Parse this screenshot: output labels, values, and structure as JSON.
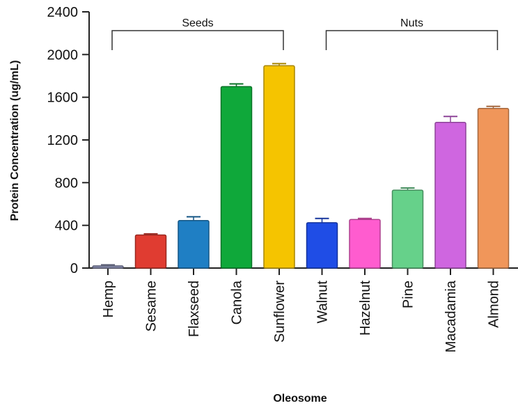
{
  "chart_data": {
    "type": "bar",
    "title": "",
    "xlabel": "Oleosome",
    "ylabel": "Protein Concentration (ug/mL)",
    "ylim": [
      0,
      2400
    ],
    "yticks": [
      0,
      400,
      800,
      1200,
      1600,
      2000,
      2400
    ],
    "grid": false,
    "categories": [
      "Hemp",
      "Sesame",
      "Flaxseed",
      "Canola",
      "Sunflower",
      "Walnut",
      "Hazelnut",
      "Pine",
      "Macadamia",
      "Almond"
    ],
    "values": [
      20,
      310,
      445,
      1700,
      1895,
      425,
      455,
      730,
      1365,
      1495
    ],
    "errors": [
      10,
      10,
      35,
      25,
      20,
      40,
      10,
      20,
      55,
      20
    ],
    "colors": [
      "#8a8fb0",
      "#e03c31",
      "#1f7fc4",
      "#0fa83a",
      "#f5c400",
      "#1f4de6",
      "#ff5ccf",
      "#66d18a",
      "#cf66e0",
      "#f0965a"
    ],
    "groups": [
      {
        "label": "Seeds",
        "from": "Hemp",
        "to": "Sunflower"
      },
      {
        "label": "Nuts",
        "from": "Walnut",
        "to": "Almond"
      }
    ]
  }
}
